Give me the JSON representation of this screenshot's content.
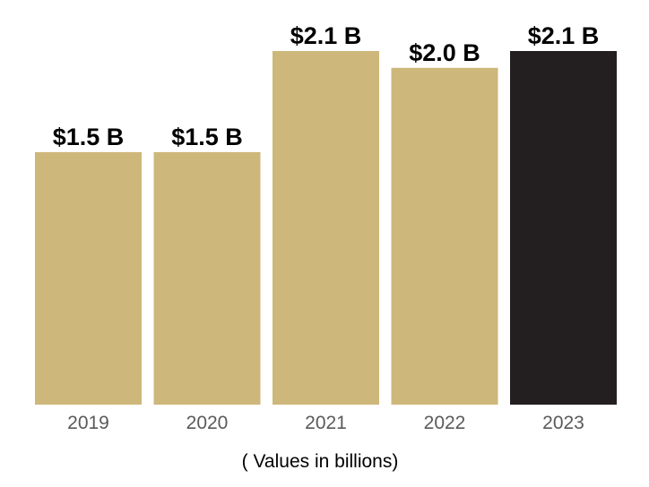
{
  "chart_data": {
    "type": "bar",
    "title": "",
    "xlabel": "",
    "ylabel": "",
    "categories": [
      "2019",
      "2020",
      "2021",
      "2022",
      "2023"
    ],
    "values": [
      1.5,
      1.5,
      2.1,
      2.0,
      2.1
    ],
    "value_labels": [
      "$1.5 B",
      "$1.5 B",
      "$2.1 B",
      "$2.0 B",
      "$2.1 B"
    ],
    "highlight_index": 4,
    "ylim": [
      0,
      2.1
    ],
    "grid": false,
    "note": "( Values in billions)",
    "colors": {
      "default": "#cdb77a",
      "highlight": "#231f20"
    }
  }
}
